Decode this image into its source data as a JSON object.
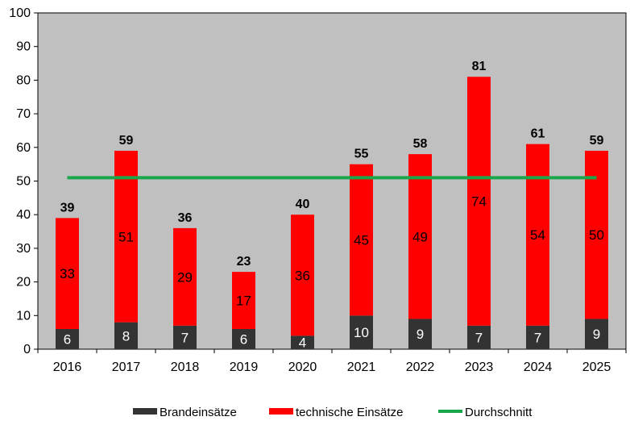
{
  "chart_data": {
    "type": "bar",
    "stacked": true,
    "categories": [
      "2016",
      "2017",
      "2018",
      "2019",
      "2020",
      "2021",
      "2022",
      "2023",
      "2024",
      "2025"
    ],
    "series": [
      {
        "name": "Brandeinsätze",
        "color": "#333333",
        "values": [
          6,
          8,
          7,
          6,
          4,
          10,
          9,
          7,
          7,
          9
        ]
      },
      {
        "name": "technische Einsätze",
        "color": "#ff0000",
        "values": [
          33,
          51,
          29,
          17,
          36,
          45,
          49,
          74,
          54,
          50
        ]
      }
    ],
    "totals": [
      39,
      59,
      36,
      23,
      40,
      55,
      58,
      81,
      61,
      59
    ],
    "average": {
      "name": "Durchschnitt",
      "color": "#1aa64a",
      "value": 51
    },
    "ylim": [
      0,
      100
    ],
    "yticks": [
      0,
      10,
      20,
      30,
      40,
      50,
      60,
      70,
      80,
      90,
      100
    ],
    "plot_background": "#c0c0c0",
    "legend_position": "bottom"
  }
}
